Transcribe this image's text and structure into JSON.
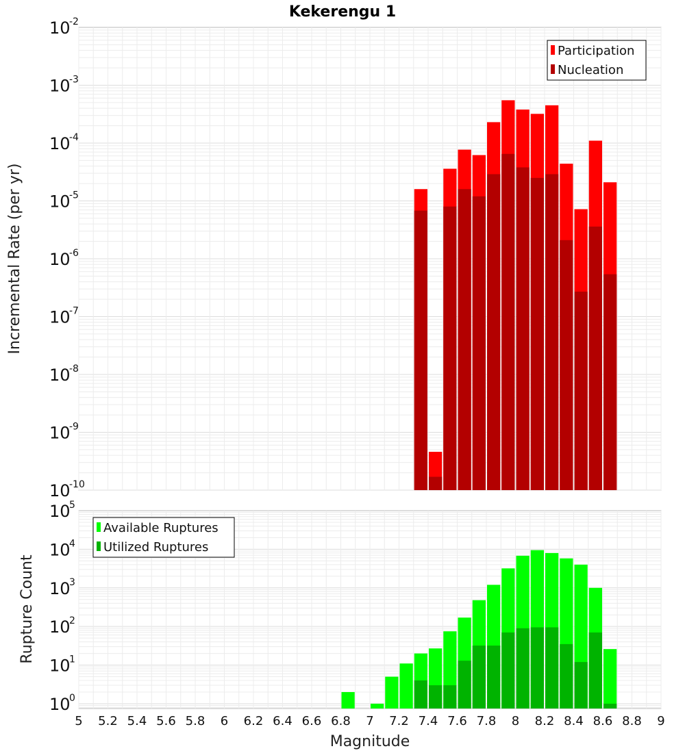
{
  "chart_data": [
    {
      "type": "bar",
      "title": "Kekerengu 1",
      "ylabel": "Incremental Rate (per yr)",
      "xlabel": "",
      "x_range": [
        5,
        9
      ],
      "y_scale": "log",
      "ylim": [
        1e-10,
        0.01
      ],
      "y_ticks": [
        {
          "base": "10",
          "exp": "-10"
        },
        {
          "base": "10",
          "exp": "-9"
        },
        {
          "base": "10",
          "exp": "-8"
        },
        {
          "base": "10",
          "exp": "-7"
        },
        {
          "base": "10",
          "exp": "-6"
        },
        {
          "base": "10",
          "exp": "-5"
        },
        {
          "base": "10",
          "exp": "-4"
        },
        {
          "base": "10",
          "exp": "-3"
        },
        {
          "base": "10",
          "exp": "-2"
        }
      ],
      "grid": true,
      "legend_position": "top-right",
      "x": [
        7.35,
        7.45,
        7.55,
        7.65,
        7.75,
        7.85,
        7.95,
        8.05,
        8.15,
        8.25,
        8.35,
        8.45,
        8.55,
        8.65
      ],
      "series": [
        {
          "name": "Participation",
          "color": "#ff0000",
          "values": [
            1.6e-05,
            4.6e-10,
            3.6e-05,
            7.7e-05,
            6.2e-05,
            0.00023,
            0.00055,
            0.00038,
            0.00032,
            0.00045,
            4.4e-05,
            7.2e-06,
            0.00011,
            2.1e-05
          ]
        },
        {
          "name": "Nucleation",
          "color": "#b30000",
          "values": [
            6.8e-06,
            1.7e-10,
            8e-06,
            1.6e-05,
            1.2e-05,
            2.9e-05,
            6.5e-05,
            3.8e-05,
            2.5e-05,
            2.9e-05,
            2.1e-06,
            2.7e-07,
            3.6e-06,
            5.4e-07
          ]
        }
      ]
    },
    {
      "type": "bar",
      "title": "",
      "ylabel": "Rupture Count",
      "xlabel": "Magnitude",
      "x_range": [
        5,
        9
      ],
      "y_scale": "log",
      "ylim": [
        0.75,
        100000.0
      ],
      "x_ticks": [
        "5",
        "5.2",
        "5.4",
        "5.6",
        "5.8",
        "6",
        "6.2",
        "6.4",
        "6.6",
        "6.8",
        "7",
        "7.2",
        "7.4",
        "7.6",
        "7.8",
        "8",
        "8.2",
        "8.4",
        "8.6",
        "8.8",
        "9"
      ],
      "y_ticks": [
        {
          "base": "10",
          "exp": "0"
        },
        {
          "base": "10",
          "exp": "1"
        },
        {
          "base": "10",
          "exp": "2"
        },
        {
          "base": "10",
          "exp": "3"
        },
        {
          "base": "10",
          "exp": "4"
        },
        {
          "base": "10",
          "exp": "5"
        }
      ],
      "grid": true,
      "legend_position": "top-left",
      "x": [
        6.85,
        6.95,
        7.05,
        7.15,
        7.25,
        7.35,
        7.45,
        7.55,
        7.65,
        7.75,
        7.85,
        7.95,
        8.05,
        8.15,
        8.25,
        8.35,
        8.45,
        8.55,
        8.65
      ],
      "series": [
        {
          "name": "Available Ruptures",
          "color": "#00ff00",
          "values": [
            2,
            0,
            1,
            5,
            11,
            20,
            27,
            75,
            170,
            480,
            1200,
            3200,
            6800,
            9500,
            8000,
            5800,
            4000,
            1000,
            26
          ]
        },
        {
          "name": "Utilized Ruptures",
          "color": "#00b300",
          "values": [
            0,
            0,
            0,
            0,
            0,
            4,
            3,
            3,
            13,
            32,
            32,
            70,
            90,
            95,
            95,
            35,
            12,
            70,
            1
          ]
        }
      ]
    }
  ]
}
